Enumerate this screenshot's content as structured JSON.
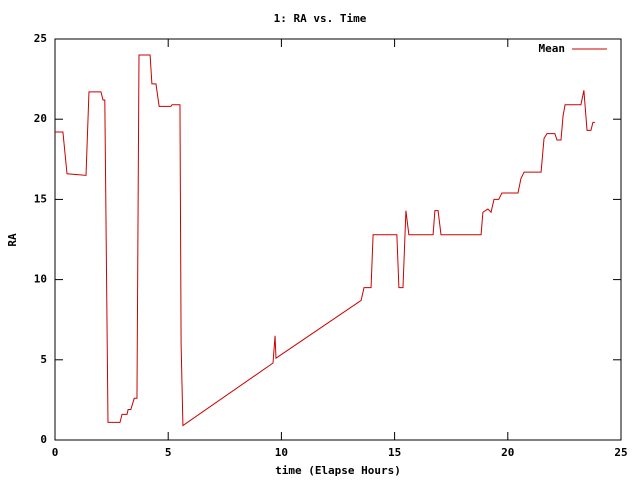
{
  "chart_data": {
    "type": "line",
    "title": "1: RA vs. Time",
    "xlabel": "time (Elapse Hours)",
    "ylabel": "RA",
    "xlim": [
      0,
      25
    ],
    "ylim": [
      0,
      25
    ],
    "xticks": [
      0,
      5,
      10,
      15,
      20,
      25
    ],
    "yticks": [
      0,
      5,
      10,
      15,
      20,
      25
    ],
    "grid": false,
    "legend": "upper right",
    "series": [
      {
        "name": "Mean",
        "color": "#cc0000",
        "x": [
          0,
          0.35,
          0.53,
          1.37,
          1.5,
          2.03,
          2.12,
          2.2,
          2.34,
          2.87,
          2.96,
          3.18,
          3.23,
          3.35,
          3.5,
          3.62,
          3.71,
          4.2,
          4.28,
          4.46,
          4.6,
          5.12,
          5.17,
          5.52,
          5.57,
          5.65,
          9.63,
          9.72,
          9.76,
          13.52,
          13.65,
          13.96,
          14.05,
          15.1,
          15.19,
          15.37,
          15.5,
          15.63,
          16.7,
          16.78,
          16.92,
          17.05,
          18.82,
          18.9,
          19.12,
          19.26,
          19.39,
          19.6,
          19.74,
          20.45,
          20.58,
          20.72,
          21.47,
          21.6,
          21.73,
          22.08,
          22.17,
          22.35,
          22.44,
          22.53,
          23.23,
          23.36,
          23.5,
          23.67,
          23.76,
          23.85
        ],
        "values": [
          19.2,
          19.2,
          16.6,
          16.5,
          21.7,
          21.7,
          21.2,
          21.2,
          1.1,
          1.1,
          1.6,
          1.6,
          1.9,
          1.9,
          2.6,
          2.6,
          24.0,
          24.0,
          22.2,
          22.2,
          20.8,
          20.8,
          20.9,
          20.9,
          6,
          0.9,
          4.8,
          6.5,
          5.1,
          8.7,
          9.5,
          9.5,
          12.8,
          12.8,
          9.5,
          9.5,
          14.3,
          12.8,
          12.8,
          14.3,
          14.3,
          12.8,
          12.8,
          14.2,
          14.4,
          14.2,
          15.0,
          15.0,
          15.4,
          15.4,
          16.3,
          16.7,
          16.7,
          18.8,
          19.1,
          19.1,
          18.7,
          18.7,
          20.2,
          20.9,
          20.9,
          21.8,
          19.3,
          19.3,
          19.8,
          19.8
        ]
      }
    ]
  }
}
